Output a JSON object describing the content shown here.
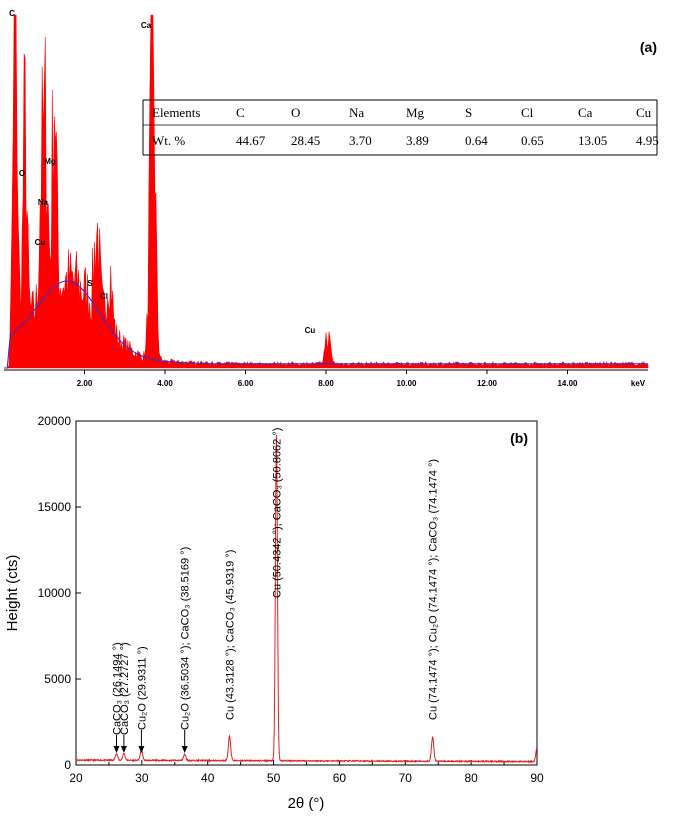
{
  "chart_data": [
    {
      "type": "area",
      "panel_label": "(a)",
      "xlabel": "keV",
      "xlim": [
        0,
        16.0
      ],
      "x_ticks": [
        "2.00",
        "4.00",
        "6.00",
        "8.00",
        "10.00",
        "12.00",
        "14.00"
      ],
      "x_tick_values": [
        2,
        4,
        6,
        8,
        10,
        12,
        14
      ],
      "colors": {
        "spectrum": "#ff0000",
        "background": "#3333cc"
      },
      "peaks": [
        {
          "label": "C",
          "kev": 0.28,
          "rel_height": 0.98
        },
        {
          "label": "O",
          "kev": 0.52,
          "rel_height": 0.56
        },
        {
          "label": "Mg",
          "kev": 1.25,
          "rel_height": 0.58
        },
        {
          "label": "Na",
          "kev": 1.04,
          "rel_height": 0.46
        },
        {
          "label": "Cu",
          "kev": 0.93,
          "rel_height": 0.36
        },
        {
          "label": "S",
          "kev": 2.31,
          "rel_height": 0.22
        },
        {
          "label": "Cl",
          "kev": 2.62,
          "rel_height": 0.17
        },
        {
          "label": "Ca",
          "kev": 3.69,
          "rel_height": 0.95
        },
        {
          "label": "Cu",
          "kev": 8.04,
          "rel_height": 0.08
        }
      ],
      "table": {
        "row_headers": [
          "Elements",
          "Wt. %"
        ],
        "columns": [
          "C",
          "O",
          "Na",
          "Mg",
          "S",
          "Cl",
          "Ca",
          "Cu"
        ],
        "values": [
          "44.67",
          "28.45",
          "3.70",
          "3.89",
          "0.64",
          "0.65",
          "13.05",
          "4.95"
        ]
      }
    },
    {
      "type": "line",
      "panel_label": "(b)",
      "xlabel": "2θ (°)",
      "ylabel": "Height (cts)",
      "xlim": [
        20,
        90
      ],
      "ylim": [
        0,
        20000
      ],
      "x_ticks": [
        20,
        30,
        40,
        50,
        60,
        70,
        80,
        90
      ],
      "y_ticks": [
        0,
        5000,
        10000,
        15000,
        20000
      ],
      "colors": {
        "line": "#e02020"
      },
      "baseline": 200,
      "peaks": [
        {
          "two_theta": 26.1494,
          "height": 380
        },
        {
          "two_theta": 27.2727,
          "height": 400
        },
        {
          "two_theta": 29.9311,
          "height": 600
        },
        {
          "two_theta": 36.5034,
          "height": 350
        },
        {
          "two_theta": 43.3128,
          "height": 1400
        },
        {
          "two_theta": 50.4342,
          "height": 19000
        },
        {
          "two_theta": 74.1474,
          "height": 1400
        },
        {
          "two_theta": 90.0,
          "height": 800
        }
      ],
      "annotations": [
        {
          "text": "CaCO₃ (26.1494 °)",
          "two_theta": 26.1494,
          "arrow": true
        },
        {
          "text": "CaCO₃ (27.2727 °)",
          "two_theta": 27.2727,
          "arrow": true
        },
        {
          "text": "Cu₂O (29.9311 °)",
          "two_theta": 29.9311,
          "arrow": true
        },
        {
          "text": "Cu₂O (36.5034 °); CaCO₃ (38.5169 °)",
          "two_theta": 36.5034,
          "arrow": true
        },
        {
          "text": "Cu (43.3128 °); CaCO₃ (45.9319 °)",
          "two_theta": 43.3128,
          "arrow": false
        },
        {
          "text": "Cu (50.4342 °); CaCO₃ (50.8062 °)",
          "two_theta": 50.4342,
          "arrow": false
        },
        {
          "text": "Cu (74.1474 °); Cu₂O (74.1474 °); CaCO₃ (74.1474 °)",
          "two_theta": 74.1474,
          "arrow": false
        }
      ]
    }
  ]
}
